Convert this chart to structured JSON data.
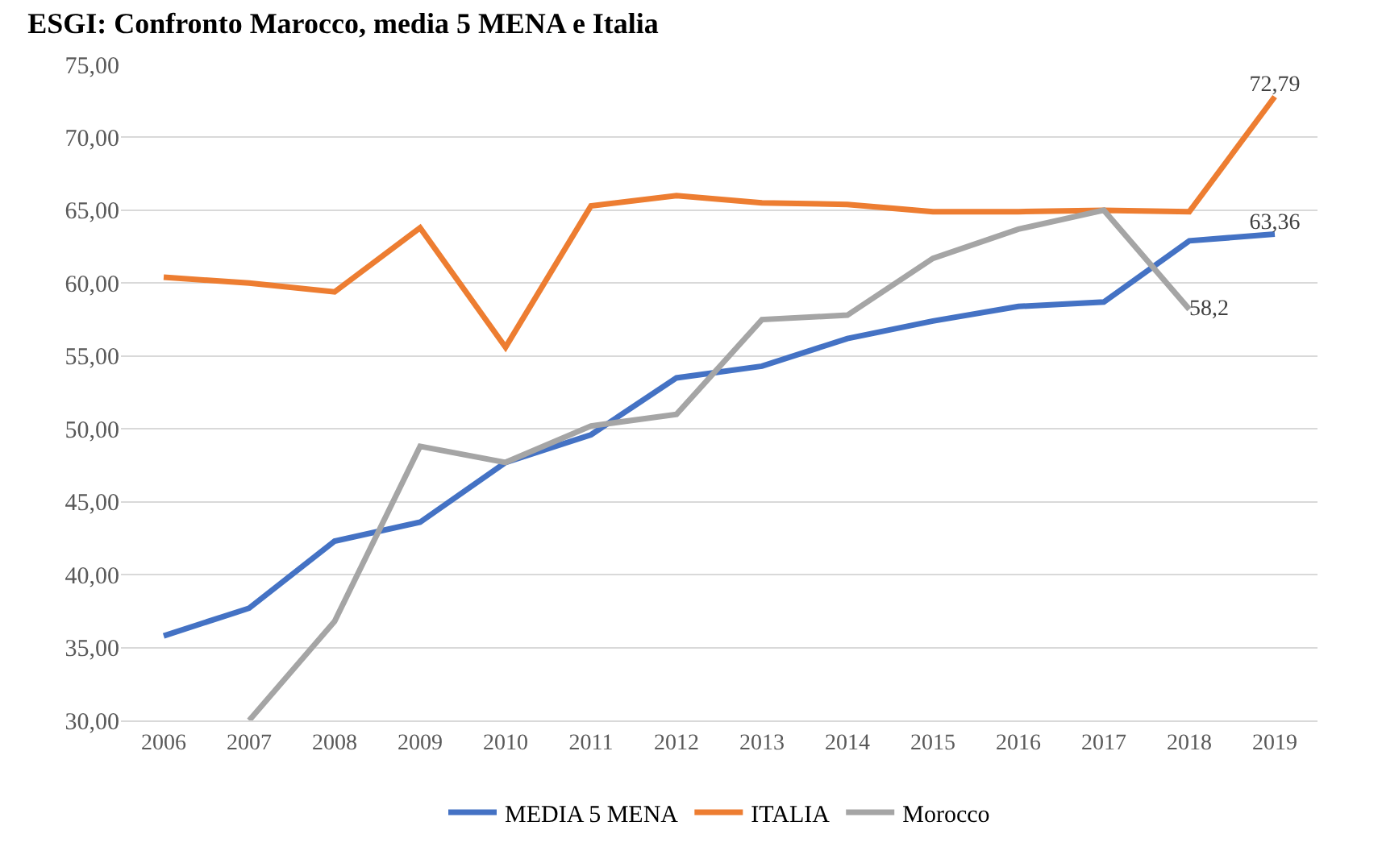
{
  "chart_data": {
    "type": "line",
    "title": "ESGI: Confronto Marocco, media 5 MENA e Italia",
    "categories": [
      "2006",
      "2007",
      "2008",
      "2009",
      "2010",
      "2011",
      "2012",
      "2013",
      "2014",
      "2015",
      "2016",
      "2017",
      "2018",
      "2019"
    ],
    "series": [
      {
        "name": "MEDIA 5 MENA",
        "color": "#4472c4",
        "values": [
          35.8,
          37.7,
          42.3,
          43.6,
          47.7,
          49.6,
          53.5,
          54.3,
          56.2,
          57.4,
          58.4,
          58.7,
          62.9,
          63.36
        ],
        "value_labels": [
          null,
          null,
          null,
          null,
          null,
          null,
          null,
          null,
          null,
          null,
          null,
          null,
          null,
          "63,36"
        ]
      },
      {
        "name": "ITALIA",
        "color": "#ed7d31",
        "values": [
          60.4,
          60.0,
          59.4,
          63.8,
          55.6,
          65.3,
          66.0,
          65.5,
          65.4,
          64.9,
          64.9,
          65.0,
          64.9,
          72.79
        ],
        "value_labels": [
          null,
          null,
          null,
          null,
          null,
          null,
          null,
          null,
          null,
          null,
          null,
          null,
          null,
          "72,79"
        ]
      },
      {
        "name": "Morocco",
        "color": "#a5a5a5",
        "values": [
          null,
          30.0,
          36.8,
          48.8,
          47.7,
          50.2,
          51.0,
          57.5,
          57.8,
          61.7,
          63.7,
          65.0,
          58.2,
          null
        ],
        "value_labels": [
          null,
          null,
          null,
          null,
          null,
          null,
          null,
          null,
          null,
          null,
          null,
          null,
          "58,2",
          null
        ]
      }
    ],
    "ylim": [
      30,
      75
    ],
    "yticks": [
      {
        "value": 30,
        "label": "30,00"
      },
      {
        "value": 35,
        "label": "35,00"
      },
      {
        "value": 40,
        "label": "40,00"
      },
      {
        "value": 45,
        "label": "45,00"
      },
      {
        "value": 50,
        "label": "50,00"
      },
      {
        "value": 55,
        "label": "55,00"
      },
      {
        "value": 60,
        "label": "60,00"
      },
      {
        "value": 65,
        "label": "65,00"
      },
      {
        "value": 70,
        "label": "70,00"
      },
      {
        "value": 75,
        "label": "75,00"
      }
    ],
    "grid": "y",
    "legend": "bottom",
    "marker": "none",
    "line_style": "solid"
  }
}
